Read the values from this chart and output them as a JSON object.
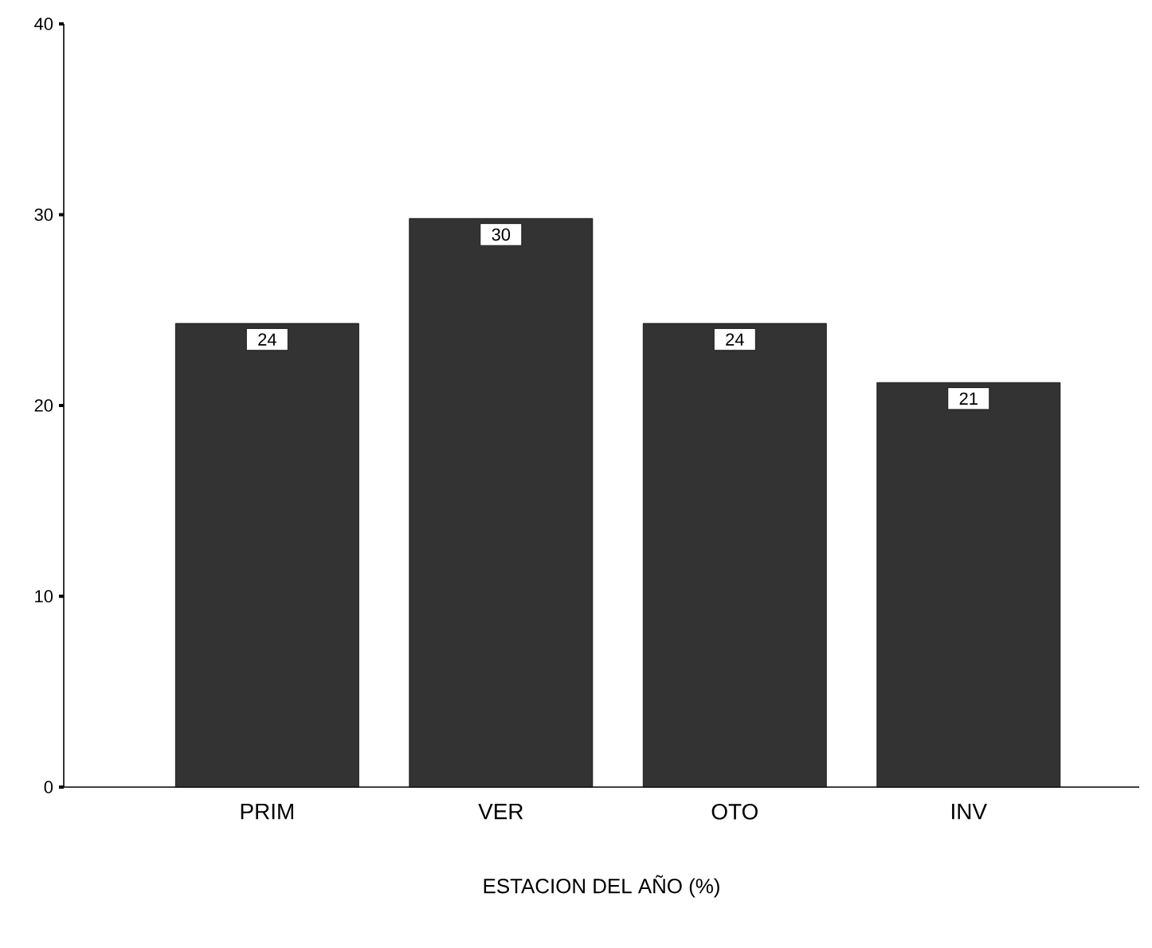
{
  "chart_data": {
    "type": "bar",
    "xlabel": "ESTACION DEL AÑO (%)",
    "categories": [
      "PRIM",
      "VER",
      "OTO",
      "INV"
    ],
    "values": [
      24.3,
      29.8,
      24.3,
      21.2
    ],
    "value_labels": [
      "24",
      "30",
      "24",
      "21"
    ],
    "color": "#333333",
    "ylim": [
      0,
      40
    ],
    "yticks": [
      0,
      10,
      20,
      30,
      40
    ]
  }
}
